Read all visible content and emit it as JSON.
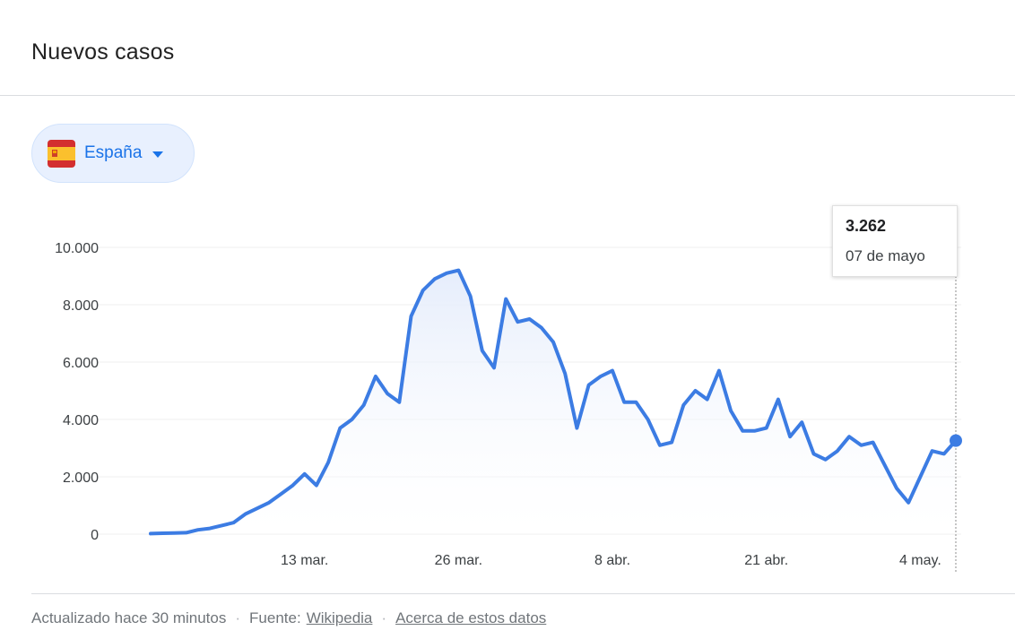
{
  "header": {
    "title": "Nuevos casos"
  },
  "country_selector": {
    "label": "España",
    "flag_icon": "spain-flag-icon"
  },
  "tooltip": {
    "value": "3.262",
    "date": "07 de mayo"
  },
  "footer": {
    "updated": "Actualizado hace 30 minutos",
    "source_label": "Fuente:",
    "source_link": "Wikipedia",
    "about_link": "Acerca de estos datos",
    "separator": "·"
  },
  "colors": {
    "line": "#3c7ce3",
    "area_top": "#e4ecfb",
    "grid": "#efefef",
    "accent": "#1a73e8"
  },
  "chart_data": {
    "type": "area",
    "title": "Nuevos casos",
    "xlabel": "",
    "ylabel": "",
    "ylim": [
      0,
      10000
    ],
    "y_ticks": [
      {
        "value": 0,
        "label": "0"
      },
      {
        "value": 2000,
        "label": "2.000"
      },
      {
        "value": 4000,
        "label": "4.000"
      },
      {
        "value": 6000,
        "label": "6.000"
      },
      {
        "value": 8000,
        "label": "8.000"
      },
      {
        "value": 10000,
        "label": "10.000"
      }
    ],
    "x_ticks": [
      {
        "date": "2020-03-13",
        "label": "13 mar."
      },
      {
        "date": "2020-03-26",
        "label": "26 mar."
      },
      {
        "date": "2020-04-08",
        "label": "8 abr."
      },
      {
        "date": "2020-04-21",
        "label": "21 abr."
      },
      {
        "date": "2020-05-04",
        "label": "4 may."
      }
    ],
    "grid": true,
    "highlight": {
      "date": "2020-05-07",
      "value": 3262
    },
    "series": [
      {
        "dates": [
          "2020-02-29",
          "2020-03-01",
          "2020-03-02",
          "2020-03-03",
          "2020-03-04",
          "2020-03-05",
          "2020-03-06",
          "2020-03-07",
          "2020-03-08",
          "2020-03-09",
          "2020-03-10",
          "2020-03-11",
          "2020-03-12",
          "2020-03-13",
          "2020-03-14",
          "2020-03-15",
          "2020-03-16",
          "2020-03-17",
          "2020-03-18",
          "2020-03-19",
          "2020-03-20",
          "2020-03-21",
          "2020-03-22",
          "2020-03-23",
          "2020-03-24",
          "2020-03-25",
          "2020-03-26",
          "2020-03-27",
          "2020-03-28",
          "2020-03-29",
          "2020-03-30",
          "2020-03-31",
          "2020-04-01",
          "2020-04-02",
          "2020-04-03",
          "2020-04-04",
          "2020-04-05",
          "2020-04-06",
          "2020-04-07",
          "2020-04-08",
          "2020-04-09",
          "2020-04-10",
          "2020-04-11",
          "2020-04-12",
          "2020-04-13",
          "2020-04-14",
          "2020-04-15",
          "2020-04-16",
          "2020-04-17",
          "2020-04-18",
          "2020-04-19",
          "2020-04-20",
          "2020-04-21",
          "2020-04-22",
          "2020-04-23",
          "2020-04-24",
          "2020-04-25",
          "2020-04-26",
          "2020-04-27",
          "2020-04-28",
          "2020-04-29",
          "2020-04-30",
          "2020-05-01",
          "2020-05-02",
          "2020-05-03",
          "2020-05-04",
          "2020-05-05",
          "2020-05-06",
          "2020-05-07"
        ],
        "values": [
          20,
          30,
          40,
          50,
          150,
          200,
          300,
          400,
          700,
          900,
          1100,
          1400,
          1700,
          2100,
          1700,
          2500,
          3700,
          4000,
          4500,
          5500,
          4900,
          4600,
          7600,
          8500,
          8900,
          9100,
          9200,
          8300,
          6400,
          5800,
          8200,
          7400,
          7500,
          7200,
          6700,
          5600,
          3700,
          5200,
          5500,
          5700,
          4600,
          4600,
          4000,
          3100,
          3200,
          4500,
          5000,
          4700,
          5700,
          4300,
          3600,
          3600,
          3700,
          4700,
          3400,
          3900,
          2800,
          2600,
          2900,
          3400,
          3100,
          3200,
          2400,
          1600,
          1100,
          2000,
          2900,
          2800,
          3262
        ]
      }
    ]
  }
}
